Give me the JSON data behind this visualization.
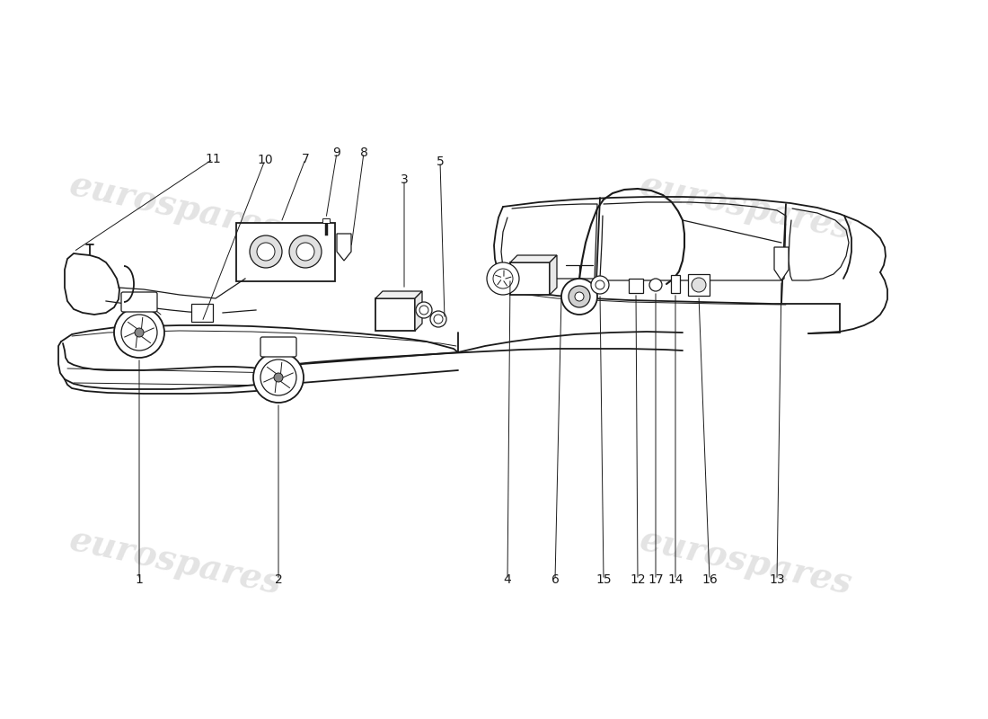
{
  "background_color": "#ffffff",
  "line_color": "#1a1a1a",
  "watermark_color_left": "#d8d8d8",
  "watermark_color_right": "#d8d8d8",
  "lw_body": 1.3,
  "lw_detail": 0.9,
  "lw_thin": 0.7,
  "label_fontsize": 10,
  "label_color": "#1a1a1a",
  "watermark_text": "eurospares",
  "watermark_fontsize": 28
}
